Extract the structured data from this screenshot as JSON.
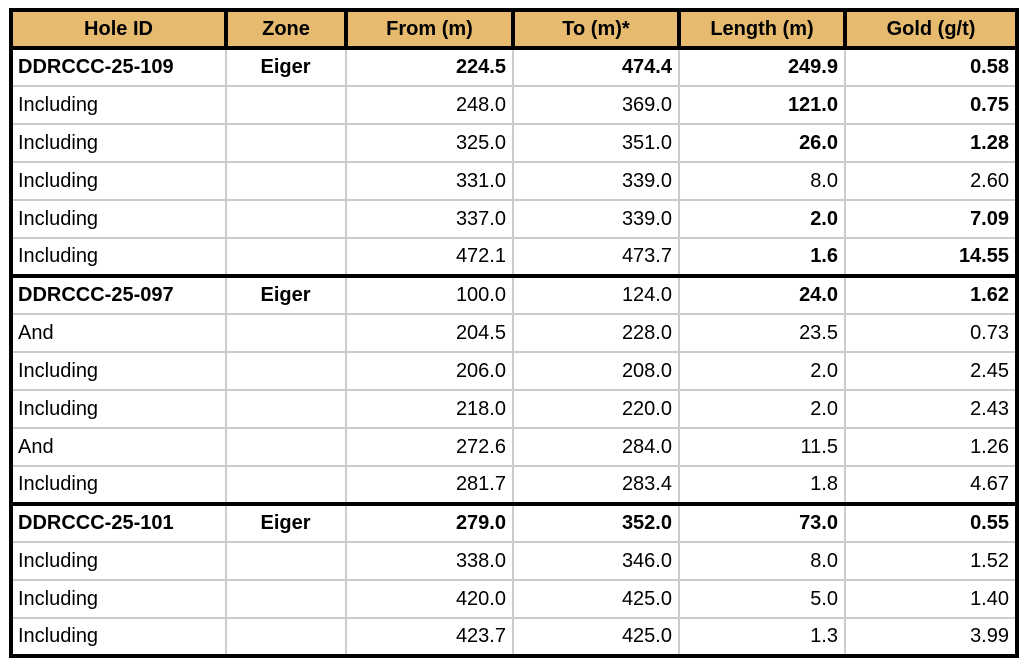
{
  "colors": {
    "header_bg": "#E6BB70",
    "heavy_border": "#000000",
    "light_grid": "#CBCBCB",
    "muted_text": "#464646"
  },
  "table": {
    "columns": [
      {
        "label": "Hole ID",
        "align": "left"
      },
      {
        "label": "Zone",
        "align": "center"
      },
      {
        "label": "From (m)",
        "align": "right"
      },
      {
        "label": "To (m)*",
        "align": "right"
      },
      {
        "label": "Length (m)",
        "align": "right"
      },
      {
        "label": "Gold (g/t)",
        "align": "right"
      }
    ],
    "rows": [
      {
        "group_start": true,
        "cells": [
          {
            "text": "DDRCCC-25-109",
            "bold": true
          },
          {
            "text": "Eiger",
            "bold": true
          },
          {
            "text": "224.5",
            "bold": true,
            "muted": true
          },
          {
            "text": "474.4",
            "bold": true
          },
          {
            "text": "249.9",
            "bold": true
          },
          {
            "text": "0.58",
            "bold": true
          }
        ]
      },
      {
        "group_start": false,
        "cells": [
          {
            "text": "Including",
            "bold": false
          },
          {
            "text": "",
            "bold": false
          },
          {
            "text": "248.0",
            "bold": false
          },
          {
            "text": "369.0",
            "bold": false
          },
          {
            "text": "121.0",
            "bold": true
          },
          {
            "text": "0.75",
            "bold": true
          }
        ]
      },
      {
        "group_start": false,
        "cells": [
          {
            "text": "Including",
            "bold": false
          },
          {
            "text": "",
            "bold": false
          },
          {
            "text": "325.0",
            "bold": false
          },
          {
            "text": "351.0",
            "bold": false
          },
          {
            "text": "26.0",
            "bold": true
          },
          {
            "text": "1.28",
            "bold": true
          }
        ]
      },
      {
        "group_start": false,
        "cells": [
          {
            "text": "Including",
            "bold": false
          },
          {
            "text": "",
            "bold": false
          },
          {
            "text": "331.0",
            "bold": false
          },
          {
            "text": "339.0",
            "bold": false
          },
          {
            "text": "8.0",
            "bold": false
          },
          {
            "text": "2.60",
            "bold": false
          }
        ]
      },
      {
        "group_start": false,
        "cells": [
          {
            "text": "Including",
            "bold": false
          },
          {
            "text": "",
            "bold": false
          },
          {
            "text": "337.0",
            "bold": false
          },
          {
            "text": "339.0",
            "bold": false
          },
          {
            "text": "2.0",
            "bold": true
          },
          {
            "text": "7.09",
            "bold": true
          }
        ]
      },
      {
        "group_start": false,
        "cells": [
          {
            "text": "Including",
            "bold": false
          },
          {
            "text": "",
            "bold": false
          },
          {
            "text": "472.1",
            "bold": false
          },
          {
            "text": "473.7",
            "bold": false
          },
          {
            "text": "1.6",
            "bold": true
          },
          {
            "text": "14.55",
            "bold": true
          }
        ]
      },
      {
        "group_start": true,
        "cells": [
          {
            "text": "DDRCCC-25-097",
            "bold": true
          },
          {
            "text": "Eiger",
            "bold": true
          },
          {
            "text": "100.0",
            "bold": false
          },
          {
            "text": "124.0",
            "bold": false
          },
          {
            "text": "24.0",
            "bold": true
          },
          {
            "text": "1.62",
            "bold": true
          }
        ]
      },
      {
        "group_start": false,
        "cells": [
          {
            "text": "And",
            "bold": false
          },
          {
            "text": "",
            "bold": false
          },
          {
            "text": "204.5",
            "bold": false
          },
          {
            "text": "228.0",
            "bold": false
          },
          {
            "text": "23.5",
            "bold": false
          },
          {
            "text": "0.73",
            "bold": false
          }
        ]
      },
      {
        "group_start": false,
        "cells": [
          {
            "text": "Including",
            "bold": false
          },
          {
            "text": "",
            "bold": false
          },
          {
            "text": "206.0",
            "bold": false
          },
          {
            "text": "208.0",
            "bold": false
          },
          {
            "text": "2.0",
            "bold": false
          },
          {
            "text": "2.45",
            "bold": false
          }
        ]
      },
      {
        "group_start": false,
        "cells": [
          {
            "text": "Including",
            "bold": false
          },
          {
            "text": "",
            "bold": false
          },
          {
            "text": "218.0",
            "bold": false
          },
          {
            "text": "220.0",
            "bold": false
          },
          {
            "text": "2.0",
            "bold": false
          },
          {
            "text": "2.43",
            "bold": false
          }
        ]
      },
      {
        "group_start": false,
        "cells": [
          {
            "text": "And",
            "bold": false
          },
          {
            "text": "",
            "bold": false
          },
          {
            "text": "272.6",
            "bold": false
          },
          {
            "text": "284.0",
            "bold": false
          },
          {
            "text": "11.5",
            "bold": false
          },
          {
            "text": "1.26",
            "bold": false
          }
        ]
      },
      {
        "group_start": false,
        "cells": [
          {
            "text": "Including",
            "bold": false
          },
          {
            "text": "",
            "bold": false
          },
          {
            "text": "281.7",
            "bold": false
          },
          {
            "text": "283.4",
            "bold": false
          },
          {
            "text": "1.8",
            "bold": false
          },
          {
            "text": "4.67",
            "bold": false
          }
        ]
      },
      {
        "group_start": true,
        "cells": [
          {
            "text": "DDRCCC-25-101",
            "bold": true
          },
          {
            "text": "Eiger",
            "bold": true
          },
          {
            "text": "279.0",
            "bold": true
          },
          {
            "text": "352.0",
            "bold": true
          },
          {
            "text": "73.0",
            "bold": true
          },
          {
            "text": "0.55",
            "bold": true
          }
        ]
      },
      {
        "group_start": false,
        "cells": [
          {
            "text": "Including",
            "bold": false
          },
          {
            "text": "",
            "bold": false
          },
          {
            "text": "338.0",
            "bold": false
          },
          {
            "text": "346.0",
            "bold": false
          },
          {
            "text": "8.0",
            "bold": false
          },
          {
            "text": "1.52",
            "bold": false
          }
        ]
      },
      {
        "group_start": false,
        "cells": [
          {
            "text": "Including",
            "bold": false
          },
          {
            "text": "",
            "bold": false
          },
          {
            "text": "420.0",
            "bold": false
          },
          {
            "text": "425.0",
            "bold": false
          },
          {
            "text": "5.0",
            "bold": false
          },
          {
            "text": "1.40",
            "bold": false
          }
        ]
      },
      {
        "group_start": false,
        "cells": [
          {
            "text": "Including",
            "bold": false
          },
          {
            "text": "",
            "bold": false
          },
          {
            "text": "423.7",
            "bold": false
          },
          {
            "text": "425.0",
            "bold": false
          },
          {
            "text": "1.3",
            "bold": false
          },
          {
            "text": "3.99",
            "bold": false
          }
        ]
      }
    ]
  }
}
